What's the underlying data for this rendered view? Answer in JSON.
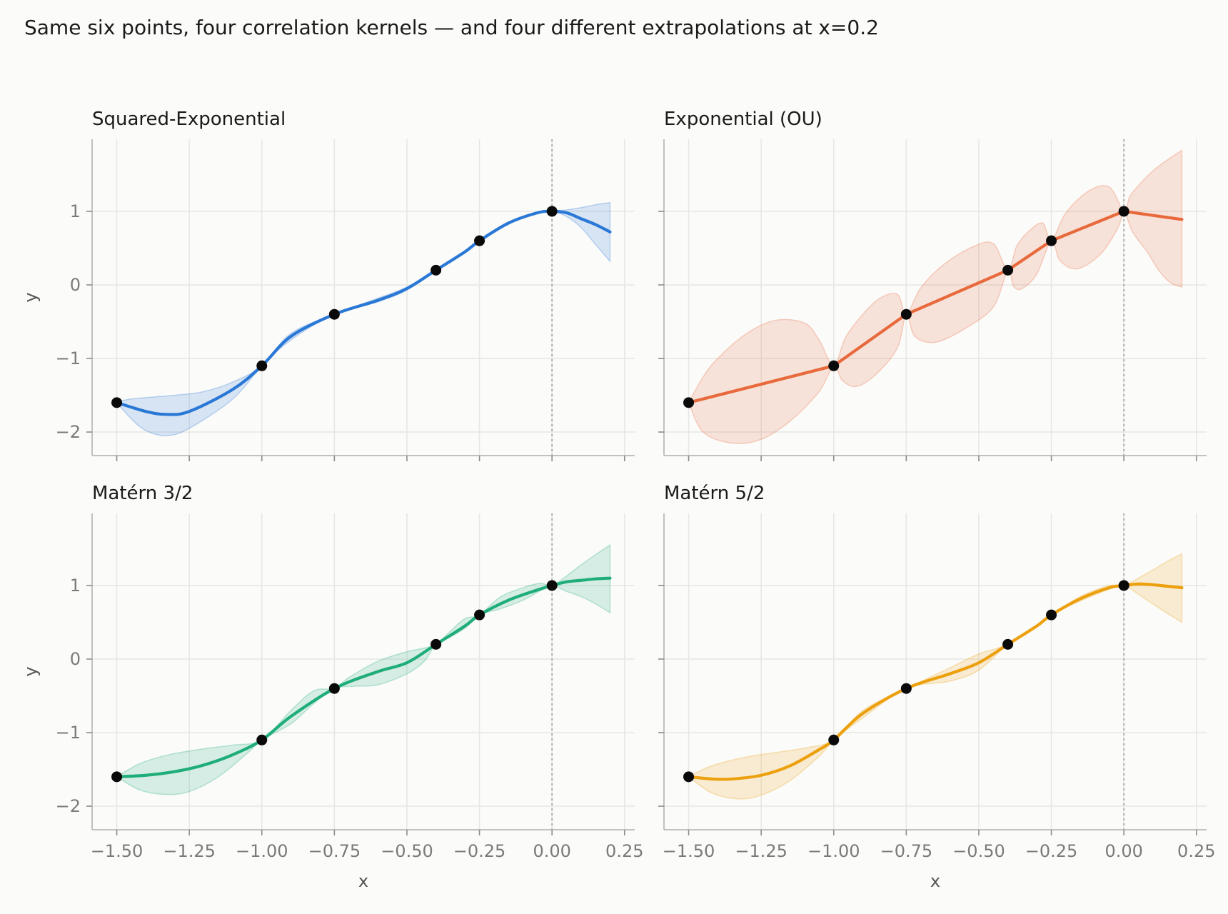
{
  "figure_title": "Same six points, four correlation kernels — and four different extrapolations at x=0.2",
  "chart_data": [
    {
      "type": "line",
      "title": "Squared-Exponential",
      "color": "#2a78d6",
      "xlabel": "",
      "ylabel": "y",
      "xlim": [
        -1.585,
        0.285
      ],
      "ylim": [
        -2.32,
        1.98
      ],
      "xticks": [
        -1.5,
        -1.25,
        -1.0,
        -0.75,
        -0.5,
        -0.25,
        0.0,
        0.25
      ],
      "xtick_labels": [],
      "yticks": [
        -2,
        -1,
        0,
        1
      ],
      "ytick_labels": [
        "−2",
        "−1",
        "0",
        "1"
      ],
      "reference_x": 0.0,
      "grid": true,
      "points": {
        "x": [
          -1.5,
          -1.0,
          -0.75,
          -0.4,
          -0.25,
          0.0
        ],
        "y": [
          -1.6,
          -1.1,
          -0.4,
          0.2,
          0.6,
          1.0
        ]
      },
      "mean": {
        "x": [
          -1.5,
          -1.4,
          -1.33,
          -1.25,
          -1.1,
          -1.0,
          -0.9,
          -0.75,
          -0.6,
          -0.5,
          -0.4,
          -0.3,
          -0.25,
          -0.15,
          -0.05,
          0.0,
          0.05,
          0.1,
          0.15,
          0.2
        ],
        "y": [
          -1.6,
          -1.72,
          -1.76,
          -1.72,
          -1.42,
          -1.1,
          -0.7,
          -0.4,
          -0.21,
          -0.05,
          0.2,
          0.45,
          0.6,
          0.84,
          0.98,
          1.0,
          0.98,
          0.9,
          0.82,
          0.72
        ]
      },
      "band_upper": {
        "x": [
          -1.5,
          -1.45,
          -1.3,
          -1.2,
          -1.1,
          -1.0,
          -0.9,
          -0.75,
          -0.6,
          -0.5,
          -0.4,
          -0.3,
          -0.25,
          -0.15,
          -0.05,
          0.0,
          0.05,
          0.1,
          0.15,
          0.2
        ],
        "y": [
          -1.6,
          -1.55,
          -1.5,
          -1.45,
          -1.32,
          -1.1,
          -0.66,
          -0.4,
          -0.18,
          -0.03,
          0.2,
          0.45,
          0.6,
          0.84,
          0.98,
          1.0,
          1.02,
          1.05,
          1.09,
          1.12
        ]
      },
      "band_lower": {
        "x": [
          -1.5,
          -1.45,
          -1.4,
          -1.33,
          -1.25,
          -1.1,
          -1.0,
          -0.9,
          -0.75,
          -0.6,
          -0.5,
          -0.4,
          -0.3,
          -0.25,
          -0.15,
          -0.05,
          0.0,
          0.05,
          0.1,
          0.15,
          0.2
        ],
        "y": [
          -1.6,
          -1.82,
          -1.98,
          -2.05,
          -1.95,
          -1.55,
          -1.1,
          -0.75,
          -0.4,
          -0.23,
          -0.07,
          0.2,
          0.45,
          0.6,
          0.84,
          0.98,
          1.0,
          0.93,
          0.78,
          0.55,
          0.32
        ]
      }
    },
    {
      "type": "line",
      "title": "Exponential (OU)",
      "color": "#e8693c",
      "xlabel": "",
      "ylabel": "",
      "xlim": [
        -1.585,
        0.285
      ],
      "ylim": [
        -2.32,
        1.98
      ],
      "xticks": [
        -1.5,
        -1.25,
        -1.0,
        -0.75,
        -0.5,
        -0.25,
        0.0,
        0.25
      ],
      "xtick_labels": [],
      "yticks": [
        -2,
        -1,
        0,
        1
      ],
      "ytick_labels": [],
      "reference_x": 0.0,
      "grid": true,
      "points": {
        "x": [
          -1.5,
          -1.0,
          -0.75,
          -0.4,
          -0.25,
          0.0
        ],
        "y": [
          -1.6,
          -1.1,
          -0.4,
          0.2,
          0.6,
          1.0
        ]
      },
      "mean": {
        "x": [
          -1.5,
          -1.0,
          -0.75,
          -0.4,
          -0.25,
          0.0,
          0.2
        ],
        "y": [
          -1.6,
          -1.1,
          -0.4,
          0.2,
          0.6,
          1.0,
          0.89
        ]
      },
      "band_upper": {
        "x": [
          -1.5,
          -1.45,
          -1.4,
          -1.3,
          -1.2,
          -1.1,
          -1.05,
          -1.0,
          -0.96,
          -0.9,
          -0.84,
          -0.78,
          -0.75,
          -0.7,
          -0.62,
          -0.52,
          -0.45,
          -0.4,
          -0.37,
          -0.33,
          -0.28,
          -0.25,
          -0.2,
          -0.12,
          -0.05,
          0.0,
          0.02,
          0.05,
          0.1,
          0.15,
          0.2
        ],
        "y": [
          -1.6,
          -1.25,
          -1.0,
          -0.66,
          -0.48,
          -0.52,
          -0.75,
          -1.1,
          -0.72,
          -0.4,
          -0.18,
          -0.13,
          -0.4,
          -0.04,
          0.28,
          0.52,
          0.56,
          0.2,
          0.52,
          0.72,
          0.84,
          0.6,
          0.98,
          1.28,
          1.33,
          1.0,
          1.2,
          1.35,
          1.55,
          1.7,
          1.83
        ]
      },
      "band_lower": {
        "x": [
          -1.5,
          -1.45,
          -1.35,
          -1.25,
          -1.15,
          -1.05,
          -1.0,
          -0.97,
          -0.92,
          -0.85,
          -0.78,
          -0.75,
          -0.72,
          -0.65,
          -0.55,
          -0.45,
          -0.4,
          -0.38,
          -0.35,
          -0.3,
          -0.25,
          -0.22,
          -0.16,
          -0.08,
          -0.02,
          0.0,
          0.03,
          0.08,
          0.12,
          0.16,
          0.2
        ],
        "y": [
          -1.6,
          -2.0,
          -2.15,
          -2.1,
          -1.85,
          -1.45,
          -1.1,
          -1.3,
          -1.38,
          -1.2,
          -0.85,
          -0.4,
          -0.7,
          -0.78,
          -0.6,
          -0.3,
          0.2,
          -0.02,
          -0.05,
          0.15,
          0.6,
          0.33,
          0.22,
          0.42,
          0.78,
          1.0,
          0.72,
          0.45,
          0.2,
          0.03,
          -0.03
        ]
      }
    },
    {
      "type": "line",
      "title": "Matérn 3/2",
      "color": "#1fad7a",
      "xlabel": "x",
      "ylabel": "y",
      "xlim": [
        -1.585,
        0.285
      ],
      "ylim": [
        -2.32,
        1.98
      ],
      "xticks": [
        -1.5,
        -1.25,
        -1.0,
        -0.75,
        -0.5,
        -0.25,
        0.0,
        0.25
      ],
      "xtick_labels": [
        "−1.50",
        "−1.25",
        "−1.00",
        "−0.75",
        "−0.50",
        "−0.25",
        "0.00",
        "0.25"
      ],
      "yticks": [
        -2,
        -1,
        0,
        1
      ],
      "ytick_labels": [
        "−2",
        "−1",
        "0",
        "1"
      ],
      "reference_x": 0.0,
      "grid": true,
      "points": {
        "x": [
          -1.5,
          -1.0,
          -0.75,
          -0.4,
          -0.25,
          0.0
        ],
        "y": [
          -1.6,
          -1.1,
          -0.4,
          0.2,
          0.6,
          1.0
        ]
      },
      "mean": {
        "x": [
          -1.5,
          -1.4,
          -1.3,
          -1.2,
          -1.1,
          -1.0,
          -0.9,
          -0.75,
          -0.6,
          -0.5,
          -0.4,
          -0.3,
          -0.25,
          -0.15,
          -0.05,
          0.0,
          0.05,
          0.1,
          0.15,
          0.2
        ],
        "y": [
          -1.6,
          -1.58,
          -1.53,
          -1.44,
          -1.3,
          -1.1,
          -0.78,
          -0.4,
          -0.17,
          -0.05,
          0.2,
          0.45,
          0.6,
          0.8,
          0.94,
          1.0,
          1.05,
          1.07,
          1.09,
          1.1
        ]
      },
      "band_upper": {
        "x": [
          -1.5,
          -1.42,
          -1.32,
          -1.2,
          -1.1,
          -1.0,
          -0.9,
          -0.82,
          -0.75,
          -0.7,
          -0.6,
          -0.5,
          -0.44,
          -0.4,
          -0.35,
          -0.3,
          -0.25,
          -0.18,
          -0.1,
          -0.04,
          0.0,
          0.05,
          0.1,
          0.15,
          0.2
        ],
        "y": [
          -1.6,
          -1.42,
          -1.3,
          -1.22,
          -1.17,
          -1.1,
          -0.7,
          -0.43,
          -0.4,
          -0.25,
          -0.03,
          0.1,
          0.15,
          0.2,
          0.38,
          0.55,
          0.6,
          0.84,
          0.97,
          1.03,
          1.0,
          1.13,
          1.28,
          1.42,
          1.55
        ]
      },
      "band_lower": {
        "x": [
          -1.5,
          -1.42,
          -1.33,
          -1.25,
          -1.15,
          -1.05,
          -1.0,
          -0.9,
          -0.82,
          -0.75,
          -0.68,
          -0.6,
          -0.5,
          -0.44,
          -0.4,
          -0.35,
          -0.3,
          -0.25,
          -0.18,
          -0.1,
          -0.04,
          0.0,
          0.05,
          0.1,
          0.15,
          0.2
        ],
        "y": [
          -1.6,
          -1.78,
          -1.84,
          -1.8,
          -1.6,
          -1.28,
          -1.1,
          -0.88,
          -0.6,
          -0.4,
          -0.37,
          -0.35,
          -0.2,
          -0.03,
          0.2,
          0.3,
          0.42,
          0.6,
          0.68,
          0.8,
          0.93,
          1.0,
          0.92,
          0.85,
          0.75,
          0.63
        ]
      }
    },
    {
      "type": "line",
      "title": "Matérn 5/2",
      "color": "#eda00d",
      "xlabel": "x",
      "ylabel": "",
      "xlim": [
        -1.585,
        0.285
      ],
      "ylim": [
        -2.32,
        1.98
      ],
      "xticks": [
        -1.5,
        -1.25,
        -1.0,
        -0.75,
        -0.5,
        -0.25,
        0.0,
        0.25
      ],
      "xtick_labels": [
        "−1.50",
        "−1.25",
        "−1.00",
        "−0.75",
        "−0.50",
        "−0.25",
        "0.00",
        "0.25"
      ],
      "yticks": [
        -2,
        -1,
        0,
        1
      ],
      "ytick_labels": [],
      "reference_x": 0.0,
      "grid": true,
      "points": {
        "x": [
          -1.5,
          -1.0,
          -0.75,
          -0.4,
          -0.25,
          0.0
        ],
        "y": [
          -1.6,
          -1.1,
          -0.4,
          0.2,
          0.6,
          1.0
        ]
      },
      "mean": {
        "x": [
          -1.5,
          -1.42,
          -1.35,
          -1.25,
          -1.15,
          -1.05,
          -1.0,
          -0.9,
          -0.75,
          -0.6,
          -0.5,
          -0.4,
          -0.3,
          -0.25,
          -0.15,
          -0.05,
          0.0,
          0.05,
          0.1,
          0.15,
          0.2
        ],
        "y": [
          -1.6,
          -1.63,
          -1.63,
          -1.58,
          -1.45,
          -1.23,
          -1.1,
          -0.74,
          -0.4,
          -0.2,
          -0.05,
          0.2,
          0.45,
          0.6,
          0.82,
          0.97,
          1.0,
          1.02,
          1.01,
          0.99,
          0.97
        ]
      },
      "band_upper": {
        "x": [
          -1.5,
          -1.42,
          -1.3,
          -1.2,
          -1.1,
          -1.0,
          -0.9,
          -0.75,
          -0.6,
          -0.5,
          -0.4,
          -0.3,
          -0.25,
          -0.15,
          -0.05,
          0.0,
          0.05,
          0.1,
          0.15,
          0.2
        ],
        "y": [
          -1.6,
          -1.45,
          -1.33,
          -1.27,
          -1.21,
          -1.1,
          -0.7,
          -0.4,
          -0.12,
          0.07,
          0.2,
          0.45,
          0.6,
          0.85,
          1.0,
          1.0,
          1.1,
          1.21,
          1.33,
          1.43
        ]
      },
      "band_lower": {
        "x": [
          -1.5,
          -1.42,
          -1.33,
          -1.25,
          -1.15,
          -1.05,
          -1.0,
          -0.9,
          -0.75,
          -0.6,
          -0.5,
          -0.4,
          -0.3,
          -0.25,
          -0.15,
          -0.05,
          0.0,
          0.05,
          0.1,
          0.15,
          0.2
        ],
        "y": [
          -1.6,
          -1.82,
          -1.9,
          -1.85,
          -1.65,
          -1.32,
          -1.1,
          -0.8,
          -0.4,
          -0.3,
          -0.15,
          0.2,
          0.45,
          0.6,
          0.79,
          0.95,
          1.0,
          0.88,
          0.75,
          0.62,
          0.5
        ]
      }
    }
  ]
}
